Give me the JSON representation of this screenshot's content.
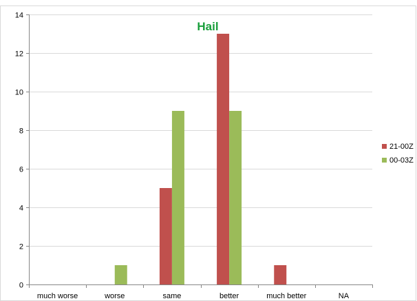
{
  "chart_data": {
    "type": "bar",
    "title": "Hail",
    "title_color": "#1a9f3c",
    "categories": [
      "much worse",
      "worse",
      "same",
      "better",
      "much better",
      "NA"
    ],
    "series": [
      {
        "name": "21-00Z",
        "color": "#c0504d",
        "values": [
          0,
          0,
          5,
          13,
          1,
          0
        ]
      },
      {
        "name": "00-03Z",
        "color": "#9bbb59",
        "values": [
          0,
          1,
          9,
          9,
          0,
          0
        ]
      }
    ],
    "ylim": [
      0,
      14
    ],
    "yticks": [
      0,
      2,
      4,
      6,
      8,
      10,
      12,
      14
    ],
    "grid": true,
    "legend_position": "right"
  }
}
